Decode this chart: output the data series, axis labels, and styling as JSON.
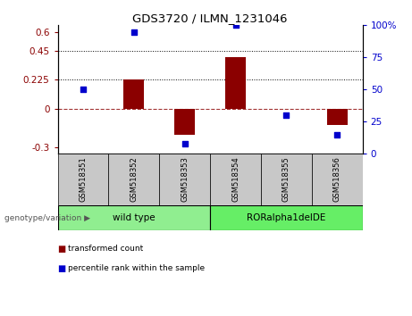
{
  "title": "GDS3720 / ILMN_1231046",
  "samples": [
    "GSM518351",
    "GSM518352",
    "GSM518353",
    "GSM518354",
    "GSM518355",
    "GSM518356"
  ],
  "group_labels": [
    "wild type",
    "RORalpha1delDE"
  ],
  "bar_values": [
    0.0,
    0.225,
    -0.2,
    0.4,
    0.0,
    -0.13
  ],
  "dot_values": [
    50,
    95,
    8,
    100,
    30,
    15
  ],
  "ylim_left": [
    -0.35,
    0.65
  ],
  "ylim_right": [
    0,
    100
  ],
  "left_ticks": [
    -0.3,
    0,
    0.225,
    0.45,
    0.6
  ],
  "right_ticks": [
    0,
    25,
    50,
    75,
    100
  ],
  "hlines": [
    0.225,
    0.45
  ],
  "hline_zero": 0.0,
  "bar_color": "#8B0000",
  "dot_color": "#0000CC",
  "legend_bar_label": "transformed count",
  "legend_dot_label": "percentile rank within the sample",
  "genotype_label": "genotype/variation",
  "sample_bg_color": "#C8C8C8",
  "wild_type_color": "#90EE90",
  "ror_color": "#66EE66"
}
